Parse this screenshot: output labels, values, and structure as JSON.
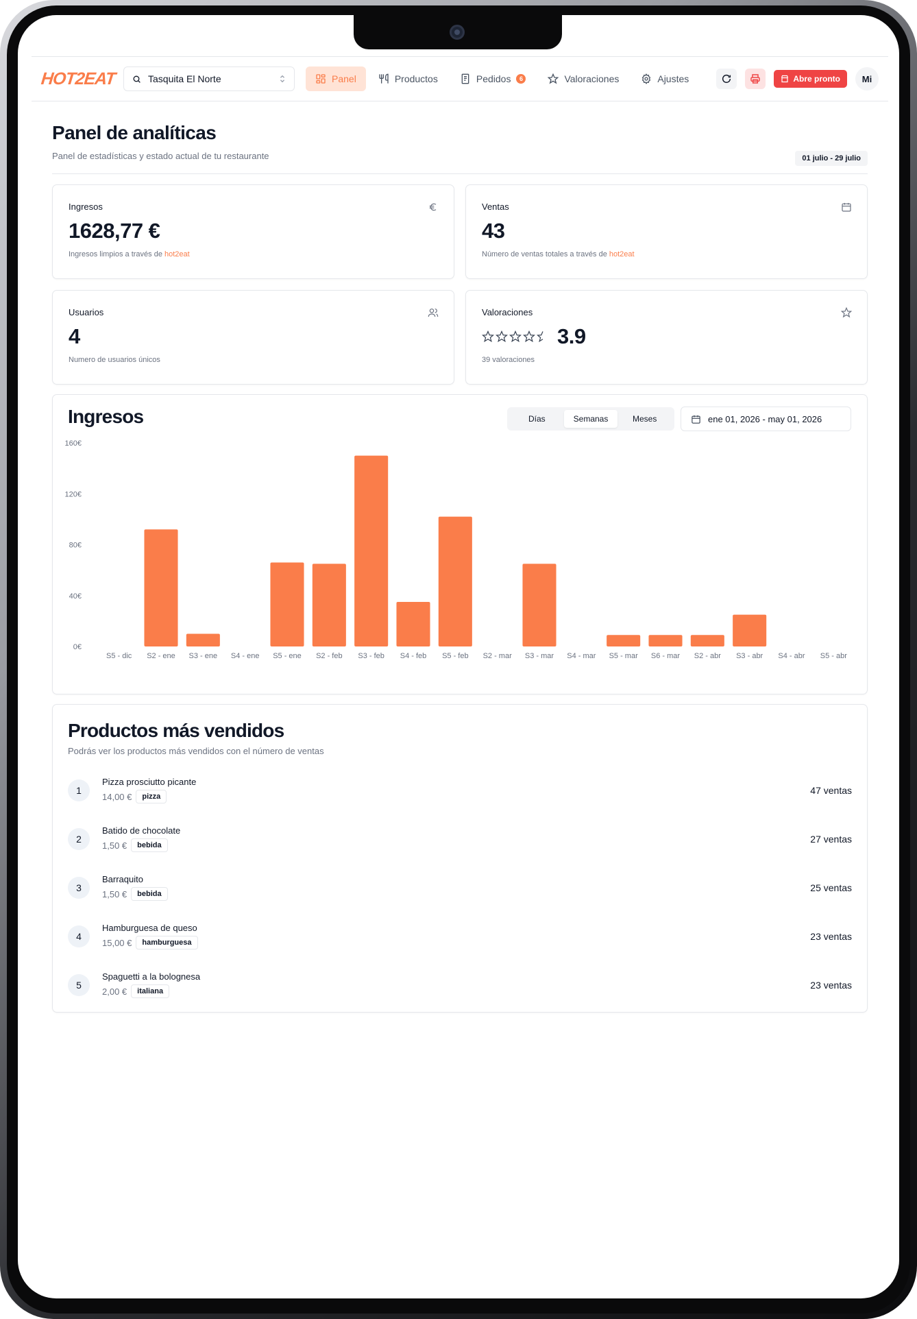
{
  "brand": {
    "logo_text": "HOT2EAT",
    "accent": "#fa7d4a"
  },
  "topbar": {
    "store_selector": {
      "value": "Tasquita El Norte"
    },
    "nav": [
      {
        "label": "Panel",
        "icon": "dashboard-icon",
        "active": true
      },
      {
        "label": "Productos",
        "icon": "utensils-icon",
        "active": false
      },
      {
        "label": "Pedidos",
        "icon": "receipt-icon",
        "active": false,
        "badge": "6"
      },
      {
        "label": "Valoraciones",
        "icon": "star-icon",
        "active": false
      },
      {
        "label": "Ajustes",
        "icon": "gear-icon",
        "active": false
      }
    ],
    "open_button": "Abre pronto",
    "avatar": "Mi"
  },
  "page": {
    "title": "Panel de analíticas",
    "subtitle": "Panel de estadísticas y estado actual de tu restaurante",
    "date_range": "01 julio - 29 julio"
  },
  "stats": {
    "ingresos": {
      "title": "Ingresos",
      "value": "1628,77 €",
      "desc": "Ingresos limpios a través de ",
      "brand": "hot2eat",
      "icon": "euro-icon"
    },
    "ventas": {
      "title": "Ventas",
      "value": "43",
      "desc": "Número de ventas totales a través de ",
      "brand": "hot2eat",
      "icon": "calendar-icon"
    },
    "usuarios": {
      "title": "Usuarios",
      "value": "4",
      "desc": "Numero de usuarios únicos",
      "icon": "users-icon"
    },
    "valoraciones": {
      "title": "Valoraciones",
      "value": "3.9",
      "desc": "39 valoraciones",
      "stars": 3.9,
      "icon": "star-icon"
    }
  },
  "revenue_chart": {
    "title": "Ingresos",
    "periods": [
      "Días",
      "Semanas",
      "Meses"
    ],
    "active_period": "Semanas",
    "range": "ene 01, 2026 - may 01, 2026"
  },
  "chart_data": {
    "type": "bar",
    "categories": [
      "S5 - dic",
      "S2 - ene",
      "S3 - ene",
      "S4 - ene",
      "S5 - ene",
      "S2 - feb",
      "S3 - feb",
      "S4 - feb",
      "S5 - feb",
      "S2 - mar",
      "S3 - mar",
      "S4 - mar",
      "S5 - mar",
      "S6 - mar",
      "S2 - abr",
      "S3 - abr",
      "S4 - abr",
      "S5 - abr"
    ],
    "values": [
      0,
      92,
      10,
      0,
      66,
      65,
      150,
      35,
      102,
      0,
      65,
      0,
      9,
      9,
      9,
      25,
      0,
      0
    ],
    "ylim": [
      0,
      160
    ],
    "yticks": [
      "0€",
      "40€",
      "80€",
      "120€",
      "160€"
    ],
    "ytick_values": [
      0,
      40,
      80,
      120,
      160
    ],
    "color": "#fa7d4a",
    "grid": false
  },
  "top_products": {
    "title": "Productos más vendidos",
    "subtitle": "Podrás ver los productos más vendidos con el número de ventas",
    "items": [
      {
        "rank": "1",
        "name": "Pizza prosciutto picante",
        "price": "14,00 €",
        "tag": "pizza",
        "sales": "47 ventas"
      },
      {
        "rank": "2",
        "name": "Batido de chocolate",
        "price": "1,50 €",
        "tag": "bebida",
        "sales": "27 ventas"
      },
      {
        "rank": "3",
        "name": "Barraquito",
        "price": "1,50 €",
        "tag": "bebida",
        "sales": "25 ventas"
      },
      {
        "rank": "4",
        "name": "Hamburguesa de queso",
        "price": "15,00 €",
        "tag": "hamburguesa",
        "sales": "23 ventas"
      },
      {
        "rank": "5",
        "name": "Spaguetti a la bolognesa",
        "price": "2,00 €",
        "tag": "italiana",
        "sales": "23 ventas"
      }
    ]
  }
}
